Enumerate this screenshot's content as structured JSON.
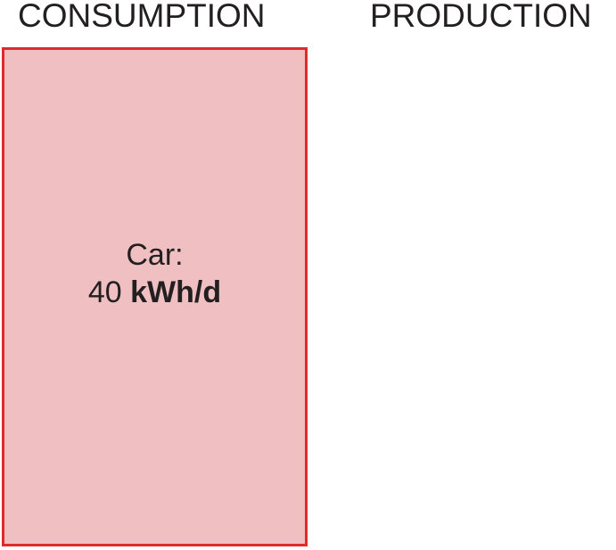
{
  "columns": {
    "consumption_label": "CONSUMPTION",
    "production_label": "PRODUCTION"
  },
  "consumption_block": {
    "name": "Car:",
    "value": "40",
    "unit": "kWh/d",
    "amount_kwh_per_day": 40,
    "fill_color": "#f0bfc1",
    "border_color": "#e02b2b"
  }
}
